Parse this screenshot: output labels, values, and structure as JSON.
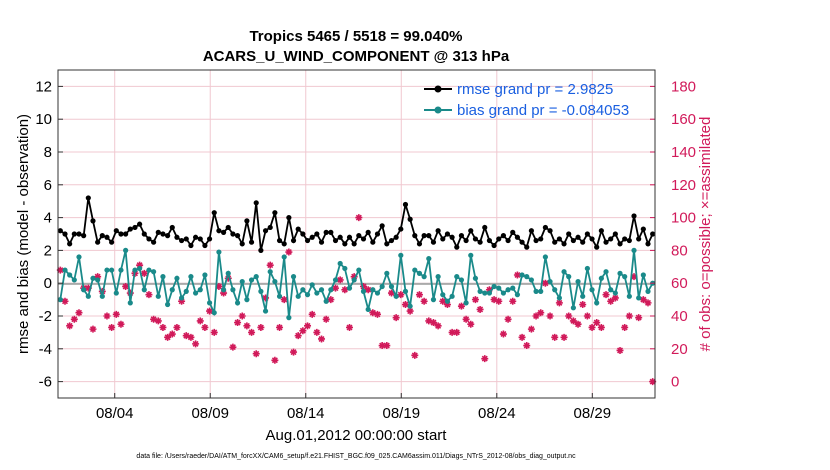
{
  "chart_data": {
    "type": "line",
    "title_line1": "Tropics 5465 / 5518 = 99.040%",
    "title_line2": "ACARS_U_WIND_COMPONENT @ 313 hPa",
    "xlabel": "Aug.01,2012 00:00:00 start",
    "ylabel_left": "rmse and bias (model - observation)",
    "ylabel_right": "# of obs: o=possible; ×=assimilated",
    "footnote": "data file: /Users/raeder/DAI/ATM_forcXX/CAM6_setup/f.e21.FHIST_BGC.f09_025.CAM6assim.011/Diags_NTrS_2012-08/obs_diag_output.nc",
    "ylim_left": [
      -7,
      13
    ],
    "ylim_right": [
      -10,
      190
    ],
    "xlim": [
      0,
      100
    ],
    "left_ticks": [
      12,
      10,
      8,
      6,
      4,
      2,
      0,
      -2,
      -4,
      -6
    ],
    "right_ticks": [
      180,
      160,
      140,
      120,
      100,
      80,
      60,
      40,
      20,
      0
    ],
    "x_ticks": [
      {
        "x": 9.5,
        "label": "08/04"
      },
      {
        "x": 25.5,
        "label": "08/09"
      },
      {
        "x": 41.5,
        "label": "08/14"
      },
      {
        "x": 57.5,
        "label": "08/19"
      },
      {
        "x": 73.5,
        "label": "08/24"
      },
      {
        "x": 89.5,
        "label": "08/29"
      }
    ],
    "colors": {
      "rmse": "#000000",
      "bias": "#1a8a8a",
      "obs": "#d11a5a",
      "grid": "#f0c8d0",
      "zero": "#aaaaaa",
      "legend_text": "#1a5fe0"
    },
    "series": [
      {
        "name": "rmse grand pr = 2.9825",
        "axis": "left",
        "values": [
          3.2,
          3.0,
          2.4,
          3.0,
          3.0,
          2.9,
          5.2,
          3.8,
          2.5,
          2.9,
          2.8,
          2.5,
          3.2,
          3.0,
          3.0,
          3.3,
          3.4,
          3.6,
          3.0,
          2.7,
          2.5,
          3.1,
          3.0,
          2.9,
          3.4,
          2.8,
          2.6,
          2.7,
          2.3,
          2.8,
          2.7,
          2.3,
          2.7,
          4.3,
          3.2,
          3.1,
          3.4,
          3.0,
          2.9,
          2.4,
          3.8,
          2.5,
          4.9,
          2.0,
          3.2,
          3.4,
          4.3,
          2.6,
          2.4,
          4.0,
          2.6,
          3.3,
          3.0,
          2.6,
          2.8,
          3.0,
          2.5,
          3.1,
          3.1,
          2.6,
          2.8,
          2.4,
          2.8,
          2.4,
          2.9,
          2.7,
          3.1,
          2.5,
          3.0,
          3.5,
          2.4,
          2.6,
          2.8,
          3.3,
          4.8,
          3.9,
          2.9,
          2.4,
          2.9,
          2.9,
          2.5,
          3.2,
          2.7,
          3.0,
          2.8,
          2.2,
          2.9,
          2.6,
          3.2,
          2.7,
          2.5,
          3.4,
          2.6,
          2.3,
          2.7,
          2.9,
          2.6,
          3.1,
          2.8,
          2.5,
          2.2,
          3.2,
          2.6,
          2.7,
          3.4,
          3.2,
          2.5,
          2.7,
          2.4,
          3.0,
          2.6,
          2.8,
          2.5,
          3.0,
          2.7,
          2.2,
          3.2,
          2.5,
          2.7,
          3.0,
          2.4,
          2.7,
          2.6,
          4.1,
          2.7,
          3.3,
          2.4,
          3.0
        ]
      },
      {
        "name": "bias grand pr = -0.084053",
        "axis": "left",
        "values": [
          -1.0,
          0.8,
          0.5,
          0.2,
          1.6,
          -0.4,
          -0.8,
          0.3,
          0.2,
          -0.8,
          0.8,
          0.8,
          -0.6,
          0.8,
          2.0,
          -1.2,
          0.8,
          0.9,
          -0.4,
          0.8,
          0.7,
          -0.8,
          0.4,
          -1.3,
          -0.4,
          0.3,
          -0.9,
          -0.5,
          0.4,
          -0.6,
          -0.4,
          0.5,
          -1.2,
          -1.8,
          1.9,
          -0.4,
          0.6,
          -0.4,
          -1.2,
          0.1,
          -1.0,
          0.2,
          0.4,
          -0.5,
          -1.7,
          0.7,
          0.1,
          -0.8,
          1.6,
          -2.1,
          0.4,
          -0.8,
          -0.4,
          -0.7,
          -0.1,
          -0.6,
          -0.4,
          -1.1,
          -0.4,
          0.2,
          1.2,
          0.9,
          -0.3,
          0.2,
          0.8,
          -0.5,
          -1.6,
          -0.4,
          -0.6,
          -0.2,
          0.6,
          -0.2,
          -0.8,
          1.7,
          -0.5,
          -1.4,
          0.8,
          0.6,
          0.4,
          1.5,
          -1.0,
          0.4,
          -0.7,
          -1.1,
          -0.8,
          0.4,
          0.2,
          -1.2,
          1.7,
          0.3,
          -0.5,
          -0.6,
          -0.6,
          -0.2,
          -0.3,
          -0.6,
          -0.4,
          -0.3,
          -0.7,
          0.5,
          0.4,
          0.2,
          -0.5,
          -0.5,
          1.6,
          0.1,
          -0.4,
          -0.9,
          0.7,
          0.4,
          -1.5,
          0.1,
          -0.8,
          0.9,
          -0.4,
          -1.2,
          0.3,
          0.7,
          -0.4,
          -0.6,
          0.6,
          0.4,
          -0.8,
          2.0,
          -0.9,
          0.5,
          -0.5,
          0.0
        ]
      },
      {
        "name": "obs assimilated",
        "axis": "right",
        "marker": "asterisk",
        "values": [
          68,
          49,
          34,
          38,
          42,
          57,
          57,
          32,
          64,
          55,
          40,
          33,
          41,
          35,
          58,
          54,
          66,
          71,
          66,
          53,
          38,
          37,
          33,
          27,
          29,
          33,
          49,
          28,
          27,
          23,
          37,
          33,
          43,
          30,
          58,
          54,
          63,
          21,
          36,
          40,
          34,
          30,
          17,
          33,
          51,
          71,
          13,
          33,
          50,
          79,
          18,
          28,
          31,
          34,
          41,
          30,
          26,
          38,
          50,
          57,
          62,
          56,
          33,
          64,
          100,
          58,
          56,
          42,
          41,
          22,
          22,
          54,
          39,
          53,
          47,
          43,
          16,
          53,
          49,
          37,
          36,
          34,
          49,
          47,
          30,
          30,
          46,
          38,
          35,
          50,
          44,
          14,
          56,
          50,
          49,
          29,
          38,
          49,
          65,
          27,
          22,
          32,
          40,
          42,
          60,
          40,
          27,
          48,
          27,
          40,
          37,
          35,
          47,
          40,
          33,
          36,
          33,
          53,
          49,
          51,
          19,
          33,
          40,
          64,
          39,
          50,
          48,
          0
        ]
      }
    ]
  }
}
